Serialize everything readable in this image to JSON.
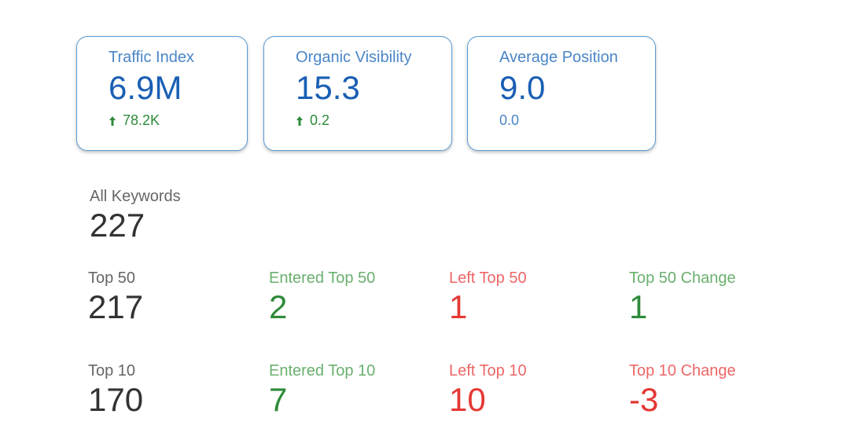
{
  "cards": [
    {
      "title": "Traffic Index",
      "value": "6.9M",
      "delta": "78.2K",
      "trend": "up"
    },
    {
      "title": "Organic Visibility",
      "value": "15.3",
      "delta": "0.2",
      "trend": "up"
    },
    {
      "title": "Average Position",
      "value": "9.0",
      "delta": "0.0",
      "trend": "none"
    }
  ],
  "all_keywords": {
    "label": "All Keywords",
    "value": "227"
  },
  "top50": {
    "top": {
      "label": "Top 50",
      "value": "217"
    },
    "entered": {
      "label": "Entered Top 50",
      "value": "2"
    },
    "left": {
      "label": "Left Top 50",
      "value": "1"
    },
    "change": {
      "label": "Top 50 Change",
      "value": "1"
    }
  },
  "top10": {
    "top": {
      "label": "Top 10",
      "value": "170"
    },
    "entered": {
      "label": "Entered Top 10",
      "value": "7"
    },
    "left": {
      "label": "Left Top 10",
      "value": "10"
    },
    "change": {
      "label": "Top 10 Change",
      "value": "-3"
    }
  },
  "colors": {
    "card_border": "#5b9bd5",
    "card_title": "#4a86c8",
    "card_value": "#1a5fb4",
    "positive": "#2e8b3a",
    "positive_label": "#6ab06e",
    "negative": "#e53935",
    "negative_label": "#ee6666",
    "neutral_label": "#666666",
    "neutral_value": "#333333"
  }
}
